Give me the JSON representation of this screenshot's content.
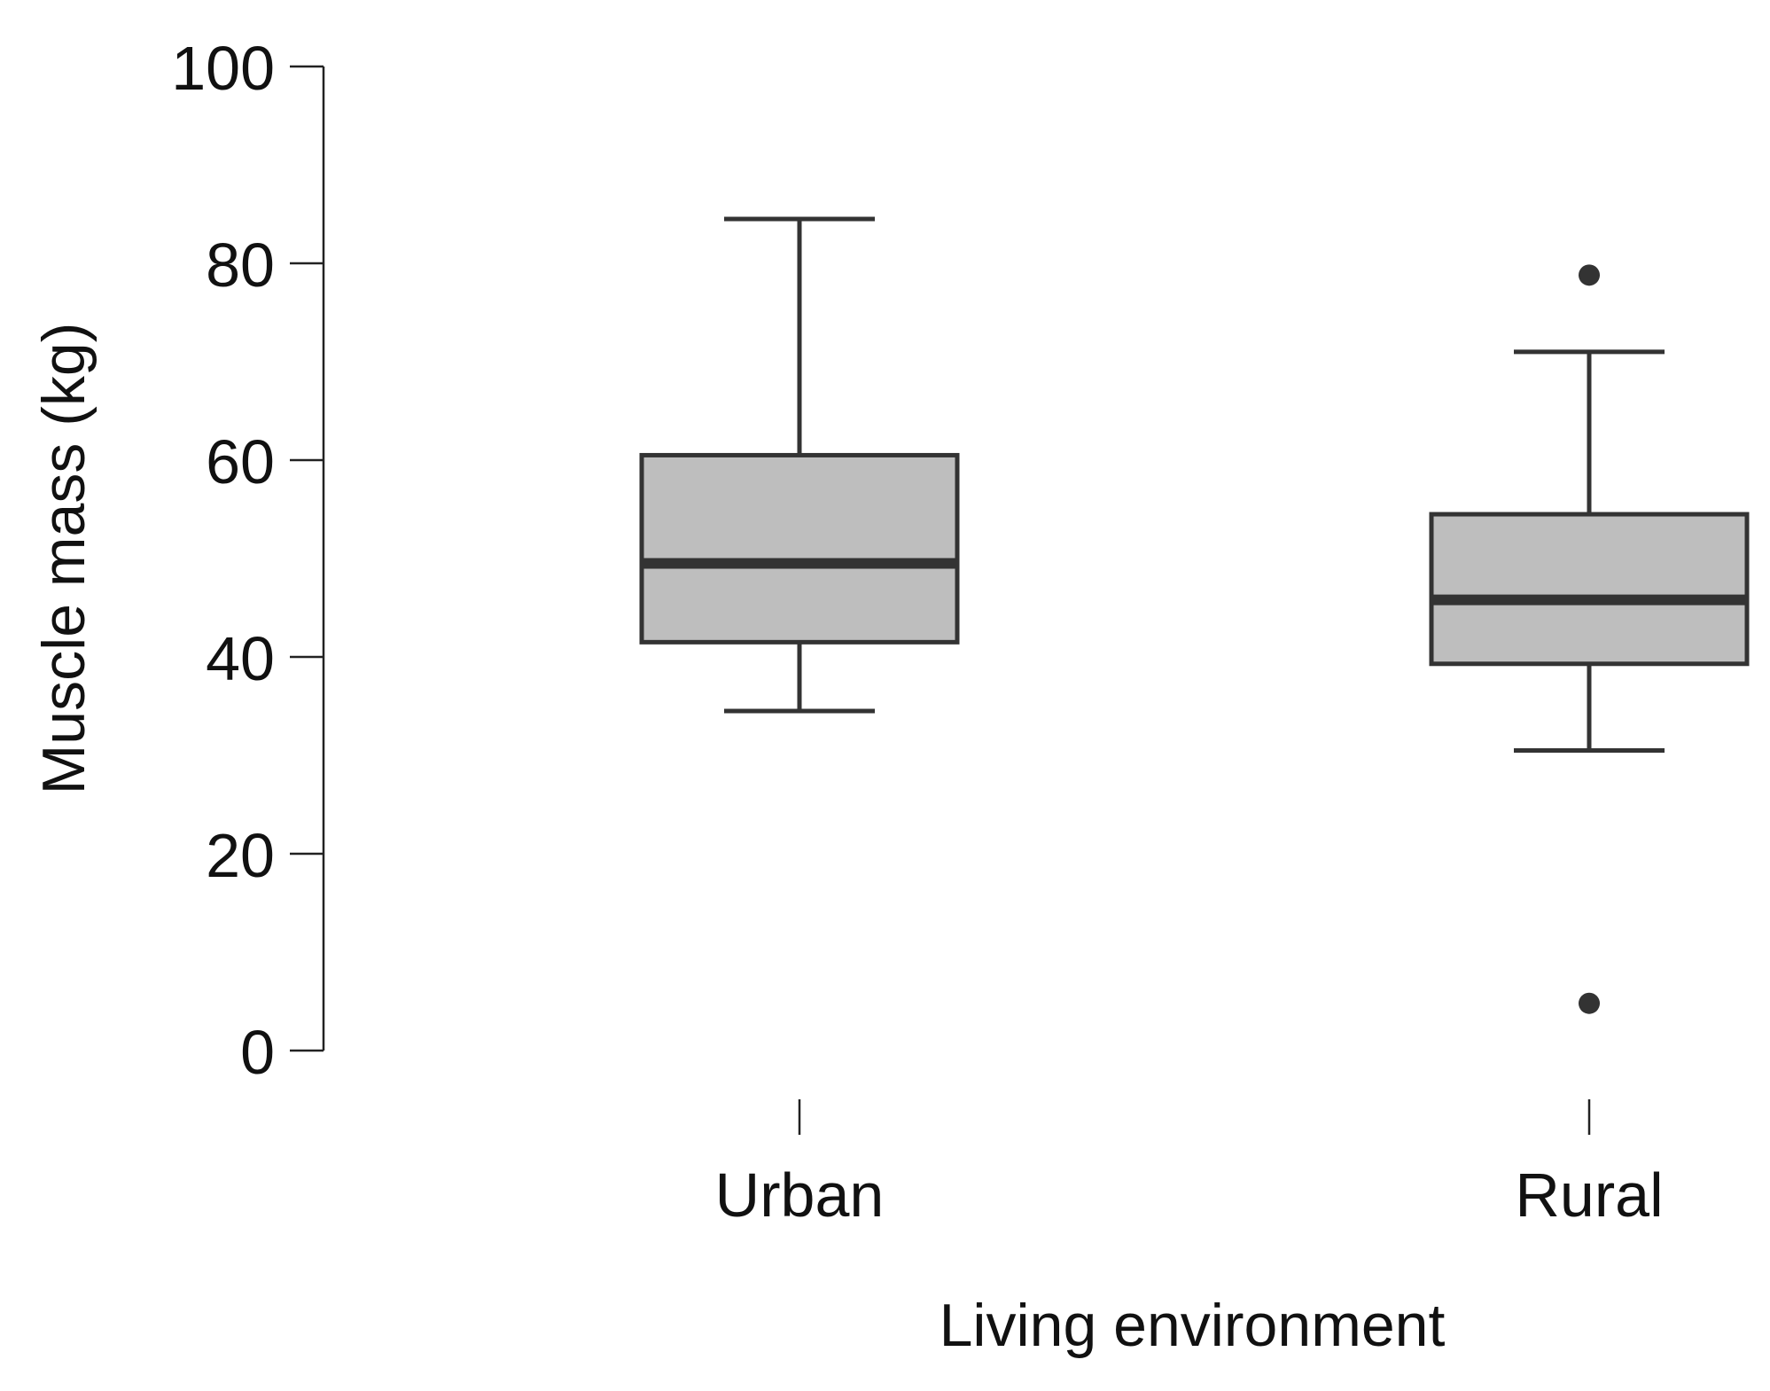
{
  "chart_data": {
    "type": "box",
    "xlabel": "Living environment",
    "ylabel": "Muscle mass (kg)",
    "ylim": [
      0,
      100
    ],
    "yticks": [
      0,
      20,
      40,
      60,
      80,
      100
    ],
    "categories": [
      "Urban",
      "Rural"
    ],
    "boxes": [
      {
        "category": "Urban",
        "whisker_low": 34.5,
        "q1": 41.5,
        "median": 49.5,
        "q3": 60.5,
        "whisker_high": 84.5,
        "outliers": []
      },
      {
        "category": "Rural",
        "whisker_low": 30.5,
        "q1": 39.3,
        "median": 45.8,
        "q3": 54.5,
        "whisker_high": 71.0,
        "outliers": [
          78.8,
          4.8
        ]
      }
    ],
    "grid": false,
    "legend": "none",
    "colors": {
      "box_fill": "#bebebe",
      "box_stroke": "#333333",
      "median": "#333333",
      "axis": "#222222",
      "outlier": "#333333"
    }
  }
}
